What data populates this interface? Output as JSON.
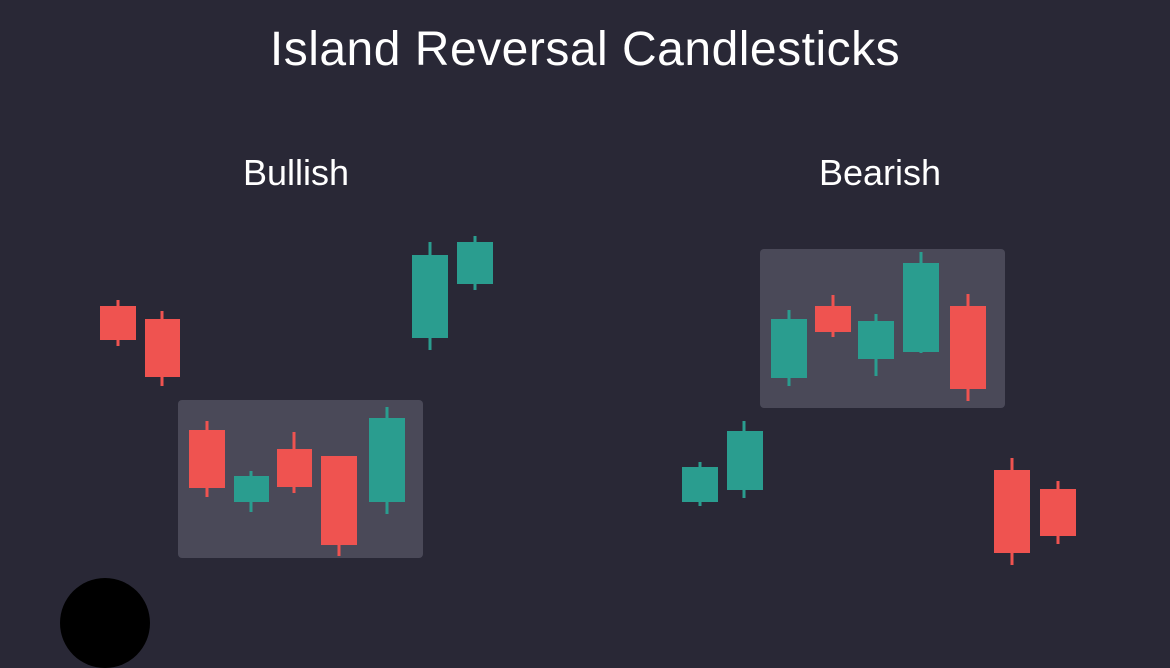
{
  "title": "Island Reversal Candlesticks",
  "panels": {
    "bullish": {
      "label": "Bullish"
    },
    "bearish": {
      "label": "Bearish"
    }
  },
  "colors": {
    "background": "#292836",
    "bullish_candle": "#2A9D8F",
    "bearish_candle": "#EF5350",
    "island_box": "#4A4958"
  }
}
